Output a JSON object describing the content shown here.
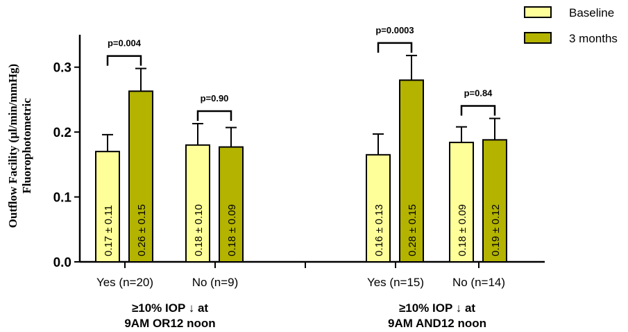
{
  "chart_data": {
    "type": "bar",
    "ylabel": [
      "Outflow Facility (µl/min/mmHg)",
      "Fluorophotometric"
    ],
    "ylim": [
      0,
      0.35
    ],
    "yticks": [
      "0.0",
      "0.1",
      "0.2",
      "0.3"
    ],
    "legend_position": "top-right",
    "series": [
      {
        "name": "Baseline",
        "color": "#ffff99"
      },
      {
        "name": "3 months",
        "color": "#b3b300"
      }
    ],
    "groups": [
      {
        "label_line1": "≥10% IOP ↓ at",
        "label_line2": "9AM OR12 noon",
        "categories": [
          {
            "label": "Yes (n=20)",
            "p": "p=0.004",
            "bars": [
              {
                "value": 0.17,
                "err": 0.026,
                "text": "0.17 ± 0.11"
              },
              {
                "value": 0.263,
                "err": 0.035,
                "text": "0.26 ± 0.15"
              }
            ]
          },
          {
            "label": "No (n=9)",
            "p": "p=0.90",
            "bars": [
              {
                "value": 0.18,
                "err": 0.033,
                "text": "0.18 ± 0.10"
              },
              {
                "value": 0.177,
                "err": 0.03,
                "text": "0.18 ± 0.09"
              }
            ]
          }
        ]
      },
      {
        "label_line1": "≥10% IOP ↓ at",
        "label_line2": "9AM AND12 noon",
        "categories": [
          {
            "label": "Yes (n=15)",
            "p": "p=0.0003",
            "bars": [
              {
                "value": 0.165,
                "err": 0.032,
                "text": "0.16 ± 0.13"
              },
              {
                "value": 0.28,
                "err": 0.038,
                "text": "0.28 ± 0.15"
              }
            ]
          },
          {
            "label": "No (n=14)",
            "p": "p=0.84",
            "bars": [
              {
                "value": 0.184,
                "err": 0.024,
                "text": "0.18 ± 0.09"
              },
              {
                "value": 0.188,
                "err": 0.033,
                "text": "0.19 ± 0.12"
              }
            ]
          }
        ]
      }
    ]
  }
}
